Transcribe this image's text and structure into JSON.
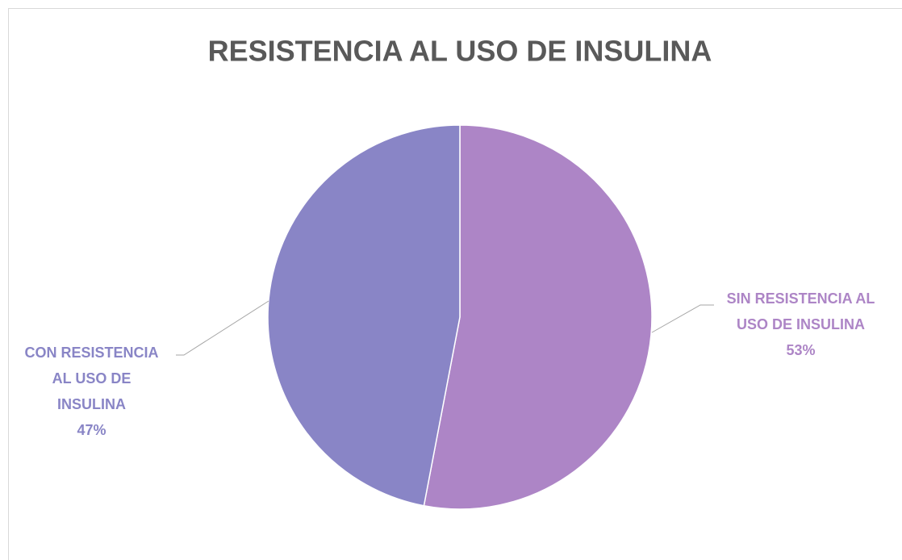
{
  "chart_data": {
    "type": "pie",
    "title": "RESISTENCIA AL USO DE INSULINA",
    "categories": [
      "SIN RESISTENCIA AL USO DE INSULINA",
      "CON RESISTENCIA AL USO DE INSULINA"
    ],
    "values": [
      53,
      47
    ],
    "value_labels": [
      "53%",
      "47%"
    ],
    "colors": [
      "#ad85c6",
      "#8985c6"
    ]
  }
}
